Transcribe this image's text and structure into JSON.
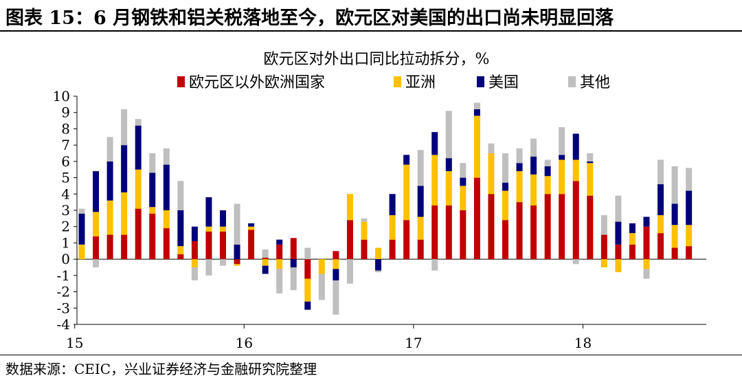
{
  "figure_title": "图表 15：6 月钢铁和铝关税落地至今，欧元区对美国的出口尚未明显回落",
  "source": "数据来源：CEIC，兴业证券经济与金融研究院整理",
  "colors": {
    "series_0": "#c00000",
    "series_1": "#ffc000",
    "series_2": "#00007a",
    "series_3": "#bfbfbf"
  },
  "chart_data": {
    "type": "bar",
    "stacked": true,
    "title": "欧元区对外出口同比拉动拆分，%",
    "xlabel": "",
    "ylabel": "",
    "ylim": [
      -4,
      10
    ],
    "yticks": [
      -4,
      -3,
      -2,
      -1,
      0,
      1,
      2,
      3,
      4,
      5,
      6,
      7,
      8,
      9,
      10
    ],
    "xtick_labels": [
      "15",
      "16",
      "17",
      "18"
    ],
    "xtick_positions": [
      "2015-01",
      "2016-01",
      "2017-01",
      "2018-01"
    ],
    "legend_position": "top",
    "grid": false,
    "categories": [
      "2015-01",
      "2015-02",
      "2015-03",
      "2015-04",
      "2015-05",
      "2015-06",
      "2015-07",
      "2015-08",
      "2015-09",
      "2015-10",
      "2015-11",
      "2015-12",
      "2016-01",
      "2016-02",
      "2016-03",
      "2016-04",
      "2016-05",
      "2016-06",
      "2016-07",
      "2016-08",
      "2016-09",
      "2016-10",
      "2016-11",
      "2016-12",
      "2017-01",
      "2017-02",
      "2017-03",
      "2017-04",
      "2017-05",
      "2017-06",
      "2017-07",
      "2017-08",
      "2017-09",
      "2017-10",
      "2017-11",
      "2017-12",
      "2018-01",
      "2018-02",
      "2018-03",
      "2018-04",
      "2018-05",
      "2018-06",
      "2018-07",
      "2018-08",
      "2018-09"
    ],
    "series": [
      {
        "name": "欧元区以外欧洲国家",
        "values": [
          0.0,
          1.4,
          1.5,
          1.5,
          3.1,
          2.8,
          1.9,
          0.3,
          1.1,
          1.7,
          1.7,
          -0.3,
          1.8,
          0.1,
          0.9,
          1.3,
          -1.2,
          0.0,
          0.5,
          2.4,
          1.2,
          0.0,
          1.2,
          2.4,
          1.2,
          3.3,
          3.3,
          3.0,
          5.0,
          4.0,
          2.4,
          3.5,
          3.3,
          4.0,
          4.0,
          4.8,
          3.9,
          1.5,
          0.9,
          0.9,
          2.0,
          1.6,
          0.7,
          0.8,
          0.0
        ]
      },
      {
        "name": "亚洲",
        "values": [
          0.9,
          1.5,
          2.1,
          2.6,
          2.4,
          0.4,
          1.1,
          0.5,
          -0.5,
          0.3,
          0.3,
          -0.1,
          0.2,
          -0.4,
          -0.6,
          0.0,
          -1.4,
          -0.9,
          -0.6,
          1.6,
          1.1,
          0.7,
          1.5,
          3.4,
          1.4,
          3.1,
          2.1,
          1.5,
          3.8,
          2.5,
          1.8,
          1.9,
          1.9,
          1.1,
          2.1,
          1.3,
          2.0,
          -0.5,
          -0.8,
          0.7,
          -0.6,
          1.1,
          1.4,
          1.3,
          0.0
        ]
      },
      {
        "name": "美国",
        "values": [
          1.9,
          2.5,
          2.4,
          2.9,
          2.7,
          2.1,
          2.8,
          2.2,
          0.9,
          1.8,
          1.0,
          0.9,
          0.2,
          -0.5,
          0.3,
          -0.5,
          -0.5,
          0.0,
          -0.7,
          0.0,
          0.0,
          -0.7,
          1.3,
          0.6,
          1.9,
          1.4,
          0.8,
          0.5,
          0.4,
          0.0,
          0.5,
          0.5,
          1.1,
          0.6,
          0.3,
          1.6,
          0.1,
          0.0,
          1.4,
          0.6,
          0.6,
          1.9,
          1.3,
          2.1,
          0.0
        ]
      },
      {
        "name": "其他",
        "values": [
          0.3,
          -0.5,
          1.5,
          2.2,
          0.4,
          1.2,
          1.0,
          1.8,
          -0.8,
          -1.0,
          -0.4,
          2.5,
          0.0,
          0.5,
          -1.5,
          -1.4,
          0.7,
          -1.6,
          -2.1,
          -1.5,
          0.2,
          -0.1,
          0.0,
          0.0,
          2.2,
          -0.7,
          2.9,
          0.9,
          0.4,
          0.6,
          1.8,
          0.9,
          1.1,
          0.4,
          1.7,
          -0.3,
          0.5,
          1.2,
          1.6,
          0.0,
          -0.6,
          1.5,
          2.3,
          1.4,
          0.0
        ]
      }
    ]
  }
}
